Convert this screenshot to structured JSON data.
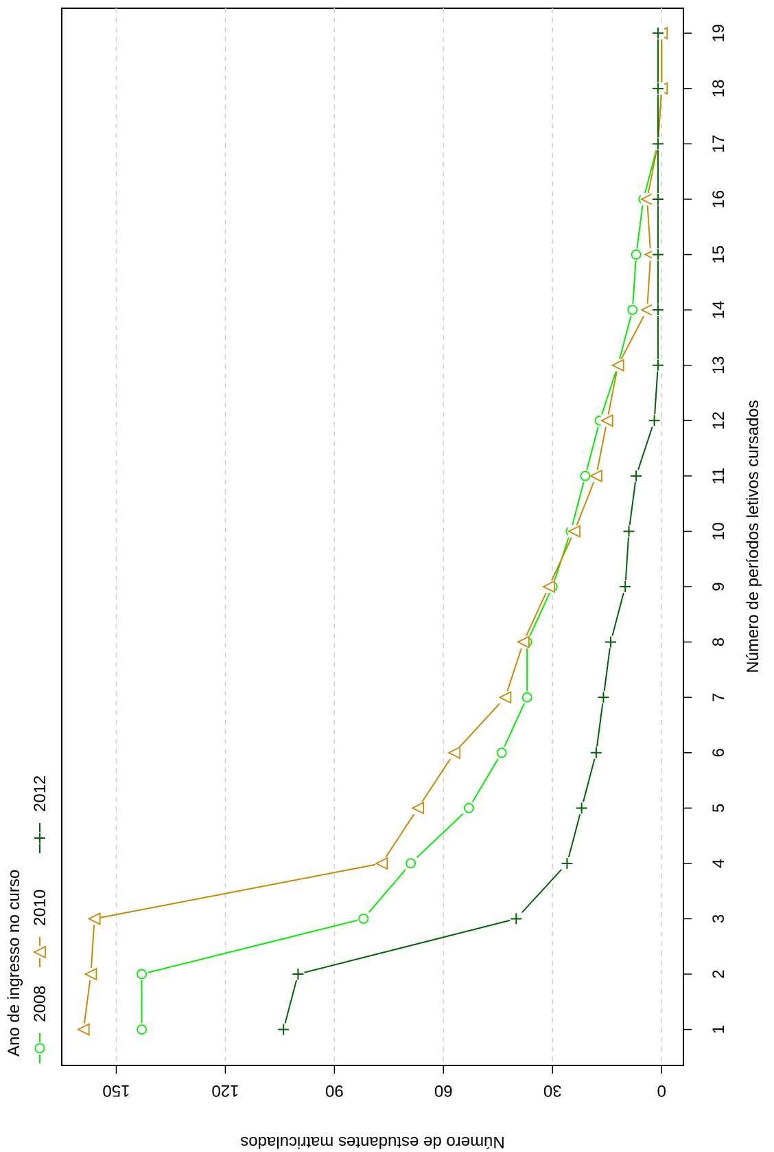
{
  "chart_data": {
    "type": "line",
    "orientation": "rotated-90",
    "xlabel": "Número de períodos letivos cursados",
    "ylabel": "Número de estudantes matriculados",
    "x": [
      1,
      2,
      3,
      4,
      5,
      6,
      7,
      8,
      9,
      10,
      11,
      12,
      13,
      14,
      15,
      16,
      17,
      18,
      19
    ],
    "xlim": [
      0.35,
      19.45
    ],
    "ylim": [
      -6,
      165
    ],
    "yticks": [
      0,
      30,
      60,
      90,
      120,
      150
    ],
    "grid": "dashed-on-y-ticks",
    "legend": {
      "title": "Ano de ingresso no curso",
      "placement": "top-left"
    },
    "series": [
      {
        "name": "2008",
        "marker": "circle",
        "color": "#00ee00",
        "values": [
          143,
          143,
          82,
          69,
          53,
          44,
          37,
          37,
          30,
          25,
          21,
          17,
          12,
          8,
          7,
          5,
          1,
          0,
          0
        ]
      },
      {
        "name": "2010",
        "marker": "triangle",
        "color": "#cc8800",
        "values": [
          159,
          157,
          156,
          77,
          67,
          57,
          43,
          38,
          31,
          24,
          18,
          15,
          12,
          4,
          3,
          4,
          1,
          0,
          0
        ]
      },
      {
        "name": "2012",
        "marker": "plus",
        "color": "#006400",
        "values": [
          104,
          100,
          40,
          26,
          22,
          18,
          16,
          14,
          10,
          9,
          7,
          2,
          1,
          1,
          1,
          1,
          1,
          1,
          1
        ]
      }
    ]
  }
}
